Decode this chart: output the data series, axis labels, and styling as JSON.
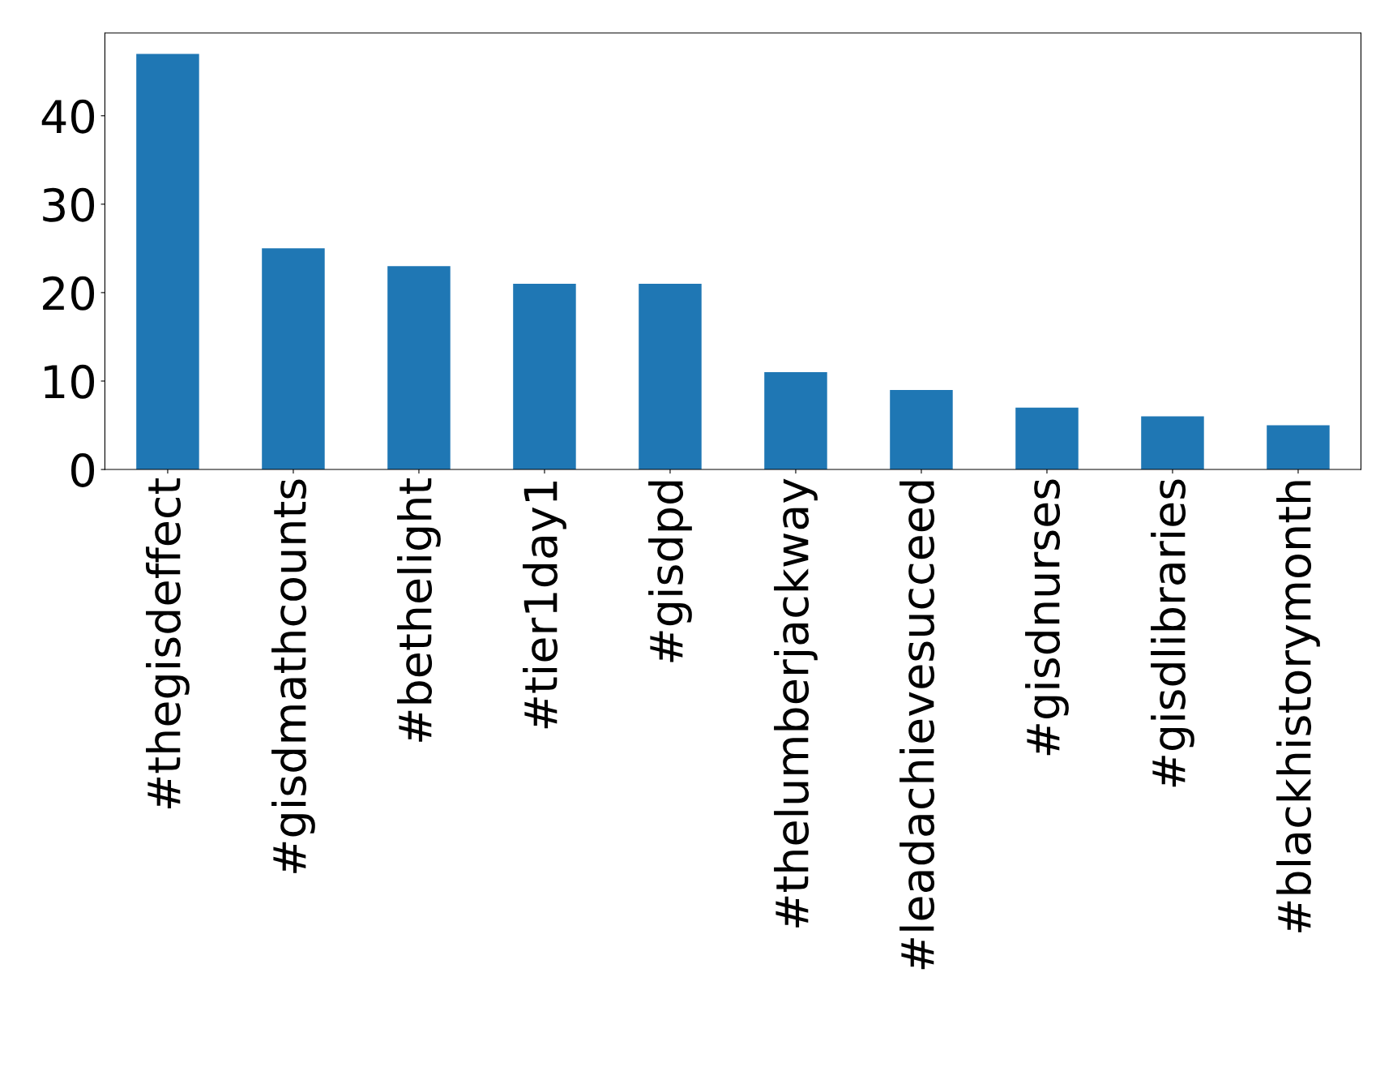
{
  "chart_data": {
    "type": "bar",
    "categories": [
      "#thegisdeffect",
      "#gisdmathcounts",
      "#bethelight",
      "#tier1day1",
      "#gisdpd",
      "#thelumberjackway",
      "#leadachievesucceed",
      "#gisdnurses",
      "#gisdlibraries",
      "#blackhistorymonth"
    ],
    "values": [
      47,
      25,
      23,
      21,
      21,
      11,
      9,
      7,
      6,
      5
    ],
    "color": "#1f77b4",
    "ylim": [
      0,
      49.35
    ],
    "yticks": [
      0,
      10,
      20,
      30,
      40
    ],
    "grid": false,
    "legend": false
  }
}
